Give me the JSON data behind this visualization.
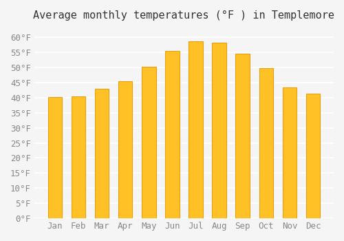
{
  "title": "Average monthly temperatures (°F ) in Templemore",
  "months": [
    "Jan",
    "Feb",
    "Mar",
    "Apr",
    "May",
    "Jun",
    "Jul",
    "Aug",
    "Sep",
    "Oct",
    "Nov",
    "Dec"
  ],
  "values": [
    40.1,
    40.5,
    42.8,
    45.5,
    50.2,
    55.4,
    58.6,
    58.1,
    54.5,
    49.8,
    43.3,
    41.4
  ],
  "bar_color_face": "#FFC125",
  "bar_color_edge": "#E8A010",
  "background_color": "#F5F5F5",
  "grid_color": "#FFFFFF",
  "ylim": [
    0,
    63
  ],
  "yticks": [
    0,
    5,
    10,
    15,
    20,
    25,
    30,
    35,
    40,
    45,
    50,
    55,
    60
  ],
  "ylabel_format": "°F",
  "title_fontsize": 11,
  "tick_fontsize": 9,
  "font_family": "monospace"
}
